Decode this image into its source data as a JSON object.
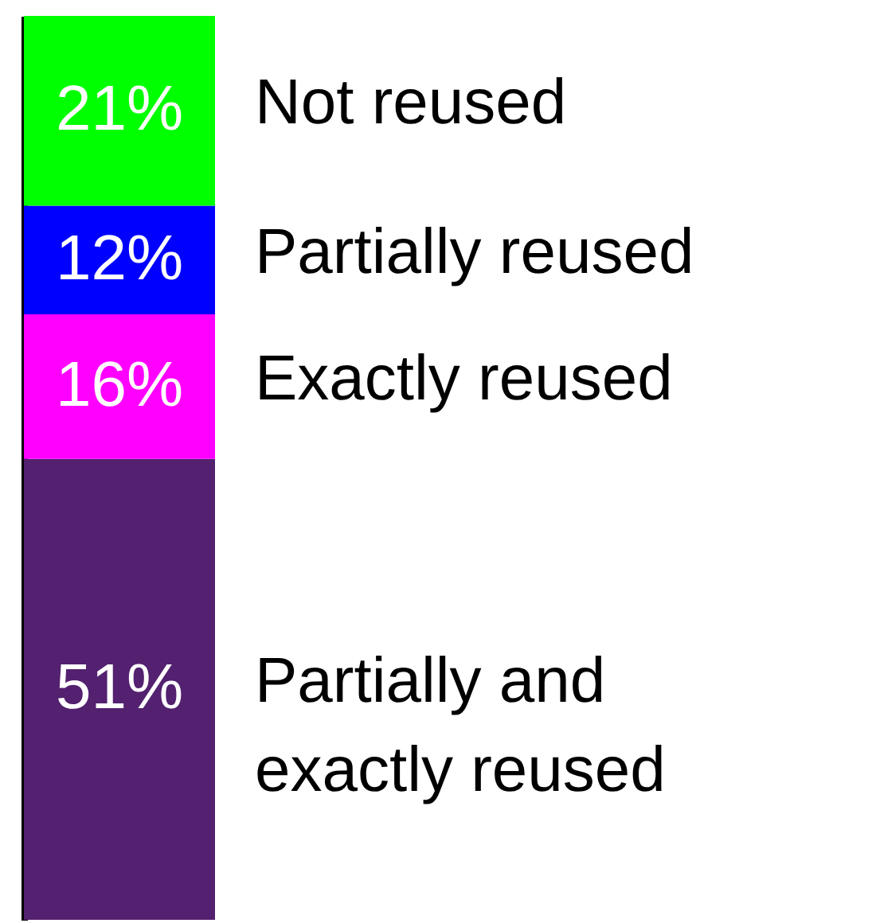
{
  "chart_data": {
    "type": "bar",
    "stacked": true,
    "categories": [
      null
    ],
    "tick_labels": false,
    "series": [
      {
        "name": "Partially and exactly reused",
        "color": "#532170",
        "values": [
          51
        ],
        "value_labels": [
          "51%"
        ]
      },
      {
        "name": "Exactly reused",
        "color": "#ff00ff",
        "values": [
          16
        ],
        "value_labels": [
          "16%"
        ]
      },
      {
        "name": "Partially reused",
        "color": "#0000ff",
        "values": [
          12
        ],
        "value_labels": [
          "12%"
        ]
      },
      {
        "name": "Not reused",
        "color": "#00ff00",
        "values": [
          21
        ],
        "value_labels": [
          "21%"
        ]
      }
    ]
  }
}
